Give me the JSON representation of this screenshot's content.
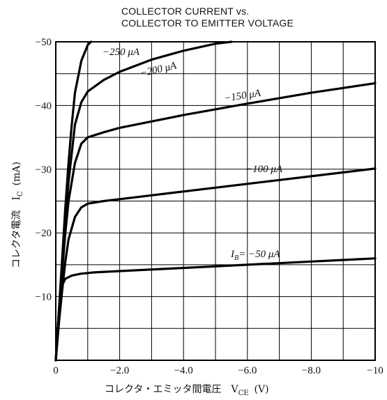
{
  "chart_data": {
    "type": "line",
    "title_line1": "COLLECTOR CURRENT vs.",
    "title_line2": "COLLECTOR TO EMITTER VOLTAGE",
    "xlabel": "コレクタ・エミッタ間電圧　V",
    "xlabel_sub": "CE",
    "xlabel_unit": "(V)",
    "ylabel": "コレクタ電流　I",
    "ylabel_sub": "C",
    "ylabel_unit": "(mA)",
    "xlim": [
      0,
      -10
    ],
    "ylim": [
      0,
      -50
    ],
    "grid": true,
    "x_ticks": [
      {
        "v": 0,
        "label": "0"
      },
      {
        "v": -2,
        "label": "−2.0"
      },
      {
        "v": -4,
        "label": "−4.0"
      },
      {
        "v": -6,
        "label": "−6.0"
      },
      {
        "v": -8,
        "label": "−8.0"
      },
      {
        "v": -10,
        "label": "−10"
      }
    ],
    "y_ticks": [
      {
        "v": -10,
        "label": "−10"
      },
      {
        "v": -20,
        "label": "−20"
      },
      {
        "v": -30,
        "label": "−30"
      },
      {
        "v": -40,
        "label": "−40"
      },
      {
        "v": -50,
        "label": "−50"
      }
    ],
    "series": [
      {
        "name": "IB=−50 μA",
        "label": "I",
        "label_sub": "B",
        "label_rest": "= −50  μA",
        "x": [
          0,
          -0.05,
          -0.1,
          -0.15,
          -0.2,
          -0.3,
          -0.5,
          -0.8,
          -1.2,
          -2,
          -4,
          -6,
          -8,
          -10
        ],
        "y": [
          0,
          -4,
          -8,
          -10.5,
          -11.8,
          -12.8,
          -13.3,
          -13.6,
          -13.8,
          -14.0,
          -14.5,
          -15.0,
          -15.5,
          -16.0
        ]
      },
      {
        "name": "−100 μA",
        "label": "−100  μA",
        "x": [
          0,
          -0.05,
          -0.1,
          -0.2,
          -0.3,
          -0.4,
          -0.6,
          -0.8,
          -1,
          -1.5,
          -2,
          -4,
          -6,
          -8,
          -10
        ],
        "y": [
          0,
          -3,
          -6,
          -11,
          -15.5,
          -19,
          -22.5,
          -24,
          -24.6,
          -25,
          -25.3,
          -26.5,
          -27.7,
          -28.9,
          -30.1
        ]
      },
      {
        "name": "−150 μA",
        "label": "−150  μA",
        "x": [
          0,
          -0.05,
          -0.1,
          -0.2,
          -0.3,
          -0.4,
          -0.6,
          -0.8,
          -1,
          -1.5,
          -2,
          -4,
          -6,
          -8,
          -10
        ],
        "y": [
          0,
          -3.5,
          -7,
          -14,
          -20,
          -25,
          -31,
          -34,
          -35,
          -35.8,
          -36.5,
          -38.5,
          -40.3,
          -42,
          -43.5
        ]
      },
      {
        "name": "−200 μA",
        "label": "−200  μA",
        "x": [
          0,
          -0.05,
          -0.1,
          -0.2,
          -0.3,
          -0.4,
          -0.6,
          -0.8,
          -1,
          -1.5,
          -2,
          -3,
          -4,
          -5,
          -5.5
        ],
        "y": [
          0,
          -3.5,
          -7.5,
          -15,
          -22,
          -28,
          -37,
          -40.5,
          -42.2,
          -44,
          -45.3,
          -47.2,
          -48.6,
          -49.7,
          -50
        ]
      },
      {
        "name": "−250 μA",
        "label": "−250  μA",
        "x": [
          0,
          -0.05,
          -0.1,
          -0.2,
          -0.3,
          -0.4,
          -0.5,
          -0.6,
          -0.8,
          -1.0,
          -1.1
        ],
        "y": [
          0,
          -4,
          -8,
          -16,
          -24,
          -31,
          -37,
          -42,
          -47,
          -49.5,
          -50
        ]
      }
    ]
  }
}
